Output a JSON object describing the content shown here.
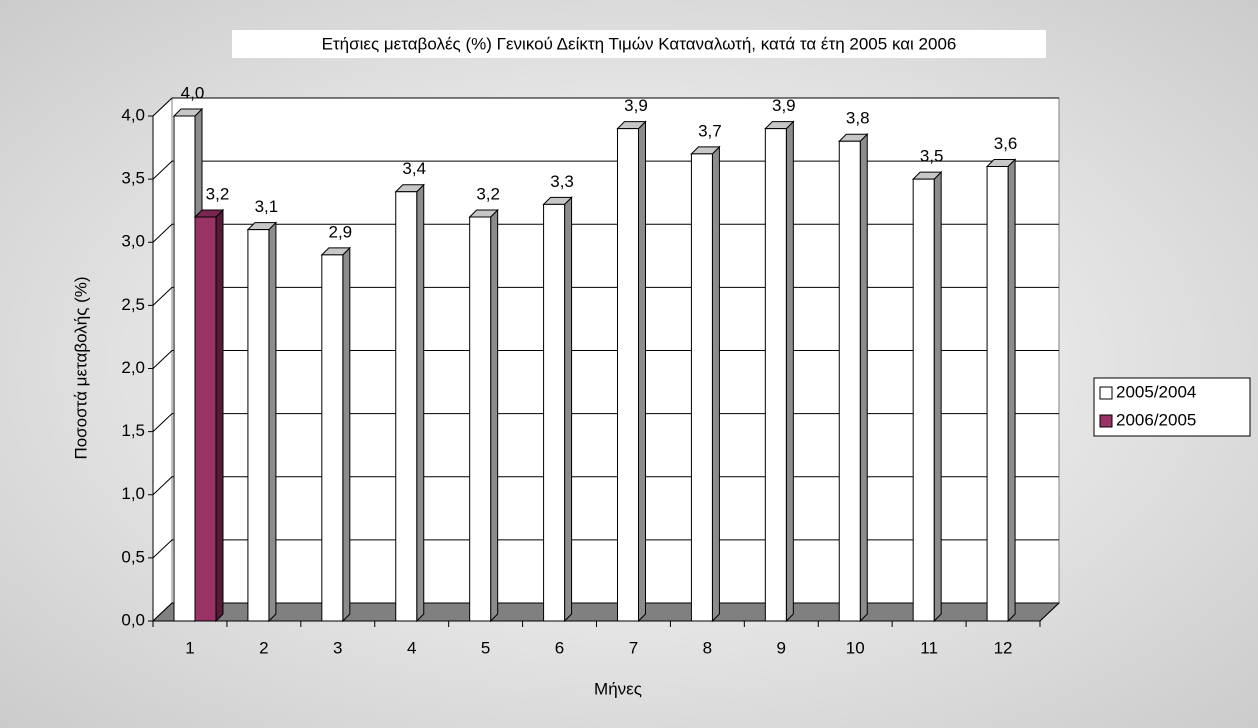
{
  "chart_data": {
    "type": "bar3d",
    "title": "Ετήσιες μεταβολές (%) Γενικού Δείκτη Τιμών Καταναλωτή, κατά τα έτη 2005 και 2006",
    "x_label": "Μήνες",
    "y_label": "Ποσοστά μεταβολής (%)",
    "categories": [
      "1",
      "2",
      "3",
      "4",
      "5",
      "6",
      "7",
      "8",
      "9",
      "10",
      "11",
      "12"
    ],
    "series": [
      {
        "name": "2005/2004",
        "color": "#ffffff",
        "values": [
          4.0,
          3.1,
          2.9,
          3.4,
          3.2,
          3.3,
          3.9,
          3.7,
          3.9,
          3.8,
          3.5,
          3.6
        ],
        "value_labels": [
          "4,0",
          "3,1",
          "2,9",
          "3,4",
          "3,2",
          "3,3",
          "3,9",
          "3,7",
          "3,9",
          "3,8",
          "3,5",
          "3,6"
        ]
      },
      {
        "name": "2006/2005",
        "color": "#993366",
        "values": [
          3.2,
          null,
          null,
          null,
          null,
          null,
          null,
          null,
          null,
          null,
          null,
          null
        ],
        "value_labels": [
          "3,2",
          null,
          null,
          null,
          null,
          null,
          null,
          null,
          null,
          null,
          null,
          null
        ]
      }
    ],
    "ylim": [
      0,
      4
    ],
    "yticks": [
      {
        "value": 0,
        "label": "0,0"
      },
      {
        "value": 0.5,
        "label": "0,5"
      },
      {
        "value": 1,
        "label": "1,0"
      },
      {
        "value": 1.5,
        "label": "1,5"
      },
      {
        "value": 2,
        "label": "2,0"
      },
      {
        "value": 2.5,
        "label": "2,5"
      },
      {
        "value": 3,
        "label": "3,0"
      },
      {
        "value": 3.5,
        "label": "3,5"
      },
      {
        "value": 4,
        "label": "4,0"
      }
    ],
    "grid": true,
    "legend": "right"
  }
}
